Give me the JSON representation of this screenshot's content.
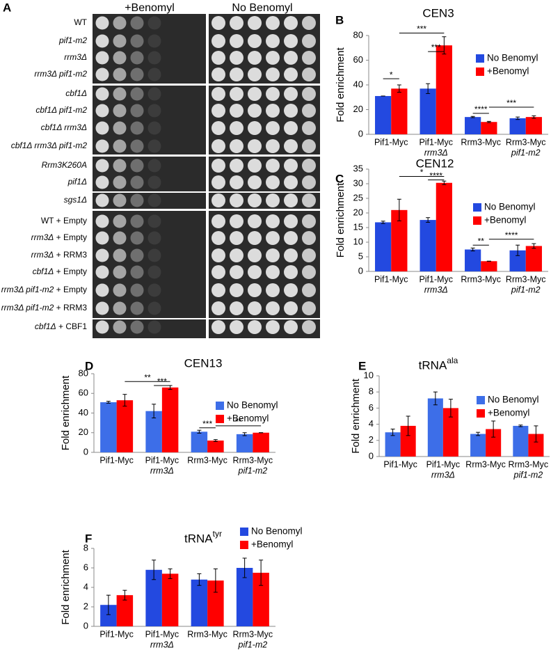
{
  "panel_a": {
    "label": "A",
    "headers": [
      "+Benomyl",
      "No Benomyl"
    ],
    "strains": [
      "WT",
      "pif1-m2",
      "rrm3Δ",
      "rrm3Δ pif1-m2",
      "cbf1Δ",
      "cbf1Δ pif1-m2",
      "cbf1Δ rrm3Δ",
      "cbf1Δ rrm3Δ pif1-m2",
      "Rrm3K260A",
      "pif1Δ",
      "sgs1Δ",
      "WT + Empty",
      "rrm3Δ + Empty",
      "rrm3Δ + RRM3",
      "cbf1Δ + Empty",
      "rrm3Δ pif1-m2 + Empty",
      "rrm3Δ pif1-m2 + RRM3",
      "cbf1Δ + CBF1"
    ]
  },
  "chart_data": [
    {
      "type": "bar",
      "panel_label": "B",
      "title": "CEN3",
      "ylabel": "Fold enrichment",
      "categories": [
        [
          "Pif1-Myc"
        ],
        [
          "Pif1-Myc",
          "rrm3Δ"
        ],
        [
          "Rrm3-Myc"
        ],
        [
          "Rrm3-Myc",
          "pif1-m2"
        ]
      ],
      "series": [
        {
          "name": "No Benomyl",
          "color": "#2349e0",
          "values": [
            31,
            37,
            14,
            13
          ],
          "errors": [
            0,
            4,
            0.5,
            1
          ]
        },
        {
          "name": "+Benomyl",
          "color": "#ff0000",
          "values": [
            37,
            72,
            10,
            14
          ],
          "errors": [
            3,
            7,
            0.5,
            1
          ]
        }
      ],
      "ylim": [
        0,
        80
      ],
      "yticks": [
        0,
        20,
        40,
        60,
        80
      ],
      "brackets": [
        {
          "label": "*",
          "from": [
            0,
            0
          ],
          "to": [
            0,
            1
          ],
          "y": 45
        },
        {
          "label": "***",
          "from": [
            0,
            1
          ],
          "to": [
            1,
            1
          ],
          "y": 82
        },
        {
          "label": "***",
          "from": [
            1,
            0
          ],
          "to": [
            1,
            1
          ],
          "y": 67
        },
        {
          "label": "****",
          "from": [
            2,
            0
          ],
          "to": [
            2,
            1
          ],
          "y": 17
        },
        {
          "label": "***",
          "from": [
            2,
            1
          ],
          "to": [
            3,
            1
          ],
          "y": 22
        }
      ]
    },
    {
      "type": "bar",
      "panel_label": "C",
      "title": "CEN12",
      "ylabel": "Fold enrichment",
      "categories": [
        [
          "Pif1-Myc"
        ],
        [
          "Pif1-Myc",
          "rrm3Δ"
        ],
        [
          "Rrm3-Myc"
        ],
        [
          "Rrm3-Myc",
          "pif1-m2"
        ]
      ],
      "series": [
        {
          "name": "No Benomyl",
          "color": "#2349e0",
          "values": [
            16.8,
            17.6,
            7.5,
            7.2
          ],
          "errors": [
            0.4,
            0.8,
            0.5,
            1.8
          ]
        },
        {
          "name": "+Benomyl",
          "color": "#ff0000",
          "values": [
            21,
            30.3,
            3.5,
            8.7
          ],
          "errors": [
            3.7,
            0.6,
            0,
            0.8
          ]
        }
      ],
      "ylim": [
        0,
        35
      ],
      "yticks": [
        0,
        5,
        10,
        15,
        20,
        25,
        30,
        35
      ],
      "brackets": [
        {
          "label": "*",
          "from": [
            0,
            1
          ],
          "to": [
            1,
            1
          ],
          "y": 32.5
        },
        {
          "label": "****",
          "from": [
            1,
            0
          ],
          "to": [
            1,
            1
          ],
          "y": 31.3
        },
        {
          "label": "**",
          "from": [
            2,
            0
          ],
          "to": [
            2,
            1
          ],
          "y": 9
        },
        {
          "label": "****",
          "from": [
            2,
            1
          ],
          "to": [
            3,
            1
          ],
          "y": 11
        }
      ]
    },
    {
      "type": "bar",
      "panel_label": "D",
      "title": "CEN13",
      "ylabel": "Fold enrichment",
      "categories": [
        [
          "Pif1-Myc"
        ],
        [
          "Pif1-Myc",
          "rrm3Δ"
        ],
        [
          "Rrm3-Myc"
        ],
        [
          "Rrm3-Myc",
          "pif1-m2"
        ]
      ],
      "series": [
        {
          "name": "No Benomyl",
          "color": "#3d6ee8",
          "values": [
            51,
            42,
            21,
            18.5
          ],
          "errors": [
            1,
            7,
            1.5,
            1.5
          ]
        },
        {
          "name": "+Benomyl",
          "color": "#ff0000",
          "values": [
            53,
            66,
            12,
            20
          ],
          "errors": [
            6,
            2,
            1,
            0
          ]
        }
      ],
      "ylim": [
        0,
        80
      ],
      "yticks": [
        0,
        20,
        40,
        60,
        80
      ],
      "brackets": [
        {
          "label": "**",
          "from": [
            0,
            1
          ],
          "to": [
            1,
            1
          ],
          "y": 72
        },
        {
          "label": "***",
          "from": [
            1,
            0
          ],
          "to": [
            1,
            1
          ],
          "y": 68
        },
        {
          "label": "***",
          "from": [
            2,
            0
          ],
          "to": [
            2,
            1
          ],
          "y": 25
        },
        {
          "label": "**",
          "from": [
            2,
            1
          ],
          "to": [
            3,
            1
          ],
          "y": 27
        }
      ]
    },
    {
      "type": "bar",
      "panel_label": "E",
      "title": "tRNA",
      "title_sup": "ala",
      "ylabel": "Fold enrichment",
      "categories": [
        [
          "Pif1-Myc"
        ],
        [
          "Pif1-Myc",
          "rrm3Δ"
        ],
        [
          "Rrm3-Myc"
        ],
        [
          "Rrm3-Myc",
          "pif1-m2"
        ]
      ],
      "series": [
        {
          "name": "No Benomyl",
          "color": "#3d6ee8",
          "values": [
            3,
            7.2,
            2.8,
            3.8
          ],
          "errors": [
            0.4,
            0.8,
            0.2,
            0.1
          ]
        },
        {
          "name": "+Benomyl",
          "color": "#ff0000",
          "values": [
            3.8,
            6,
            3.4,
            2.8
          ],
          "errors": [
            1.2,
            1.1,
            1,
            1
          ]
        }
      ],
      "ylim": [
        0,
        10
      ],
      "yticks": [
        0,
        2,
        4,
        6,
        8,
        10
      ]
    },
    {
      "type": "bar",
      "panel_label": "F",
      "title": "tRNA",
      "title_sup": "tyr",
      "ylabel": "Fold enrichment",
      "categories": [
        [
          "Pif1-Myc"
        ],
        [
          "Pif1-Myc",
          "rrm3Δ"
        ],
        [
          "Rrm3-Myc"
        ],
        [
          "Rrm3-Myc",
          "pif1-m2"
        ]
      ],
      "series": [
        {
          "name": "No Benomyl",
          "color": "#2349e0",
          "values": [
            2.2,
            5.8,
            4.8,
            6
          ],
          "errors": [
            1,
            1,
            0.6,
            1
          ]
        },
        {
          "name": "+Benomyl",
          "color": "#ff0000",
          "values": [
            3.2,
            5.4,
            4.7,
            5.5
          ],
          "errors": [
            0.5,
            0.5,
            1.2,
            1.3
          ]
        }
      ],
      "ylim": [
        0,
        8
      ],
      "yticks": [
        0,
        2,
        4,
        6,
        8
      ]
    }
  ]
}
